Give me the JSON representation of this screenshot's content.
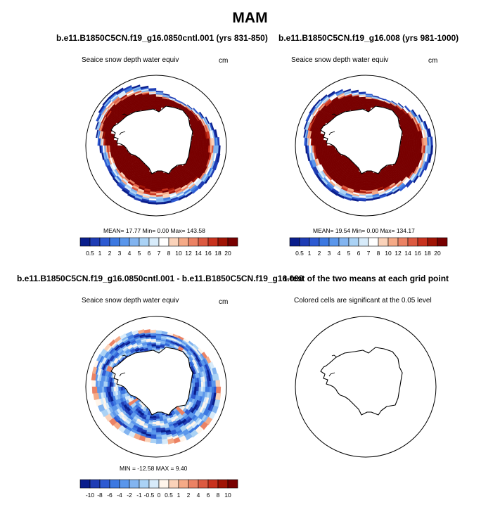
{
  "figure": {
    "season": "MAM"
  },
  "panels": {
    "ctrl": {
      "title": "b.e11.B1850C5CN.f19_g16.0850cntl.001 (yrs 831-850)",
      "variable": "Seaice snow depth water equiv",
      "units": "cm",
      "stats": "MEAN=  17.77  Min=   0.00  Max= 143.58"
    },
    "exp": {
      "title": "b.e11.B1850C5CN.f19_g16.008 (yrs 981-1000)",
      "variable": "Seaice snow depth water equiv",
      "units": "cm",
      "stats": "MEAN=  19.54  Min=   0.00  Max= 134.17"
    },
    "diff": {
      "title": "b.e11.B1850C5CN.f19_g16.0850cntl.001 - b.e11.B1850C5CN.f19_g16.008",
      "variable": "Seaice snow depth water equiv",
      "units": "cm",
      "stats": "MIN = -12.58 MAX =   9.40"
    },
    "ttest": {
      "title": "t-test of the two means at each grid point",
      "subtitle": "Colored cells are significant at the 0.05 level"
    }
  },
  "chart_data": [
    {
      "type": "heatmap",
      "projection": "south polar stereographic",
      "title": "b.e11.B1850C5CN.f19_g16.0850cntl.001 (yrs 831-850)",
      "variable": "Seaice snow depth water equiv",
      "units": "cm",
      "mean": 17.77,
      "min": 0.0,
      "max": 143.58,
      "colorbar_levels": [
        "0.5",
        "1",
        "2",
        "3",
        "4",
        "5",
        "6",
        "7",
        "8",
        "10",
        "12",
        "14",
        "16",
        "18",
        "20"
      ],
      "colorbar_colors": [
        "#0a1e8c",
        "#1e3cb4",
        "#2d5ad2",
        "#3c78e1",
        "#5a96eb",
        "#82b4f0",
        "#aad2f5",
        "#d7ebfa",
        "#ffffff",
        "#fad2b9",
        "#f5aa87",
        "#eb8264",
        "#dc5a41",
        "#c8321e",
        "#a01405",
        "#780000"
      ]
    },
    {
      "type": "heatmap",
      "projection": "south polar stereographic",
      "title": "b.e11.B1850C5CN.f19_g16.008 (yrs 981-1000)",
      "variable": "Seaice snow depth water equiv",
      "units": "cm",
      "mean": 19.54,
      "min": 0.0,
      "max": 134.17,
      "colorbar_levels": [
        "0.5",
        "1",
        "2",
        "3",
        "4",
        "5",
        "6",
        "7",
        "8",
        "10",
        "12",
        "14",
        "16",
        "18",
        "20"
      ],
      "colorbar_colors": [
        "#0a1e8c",
        "#1e3cb4",
        "#2d5ad2",
        "#3c78e1",
        "#5a96eb",
        "#82b4f0",
        "#aad2f5",
        "#d7ebfa",
        "#ffffff",
        "#fad2b9",
        "#f5aa87",
        "#eb8264",
        "#dc5a41",
        "#c8321e",
        "#a01405",
        "#780000"
      ]
    },
    {
      "type": "heatmap",
      "projection": "south polar stereographic",
      "title": "b.e11.B1850C5CN.f19_g16.0850cntl.001 - b.e11.B1850C5CN.f19_g16.008",
      "variable": "Seaice snow depth water equiv",
      "units": "cm",
      "min": -12.58,
      "max": 9.4,
      "colorbar_levels": [
        "-10",
        "-8",
        "-6",
        "-4",
        "-2",
        "-1",
        "-0.5",
        "0",
        "0.5",
        "1",
        "2",
        "4",
        "6",
        "8",
        "10"
      ],
      "colorbar_colors": [
        "#0a1e8c",
        "#1e3cb4",
        "#2d5ad2",
        "#3c78e1",
        "#5a96eb",
        "#82b4f0",
        "#aad2f5",
        "#d7ebfa",
        "#fff5eb",
        "#fad2b9",
        "#f5aa87",
        "#eb8264",
        "#dc5a41",
        "#c8321e",
        "#a01405",
        "#780000"
      ]
    },
    {
      "type": "heatmap",
      "projection": "south polar stereographic",
      "title": "t-test of the two means at each grid point",
      "subtitle": "Colored cells are significant at the 0.05 level",
      "significant_cells": 0
    }
  ]
}
